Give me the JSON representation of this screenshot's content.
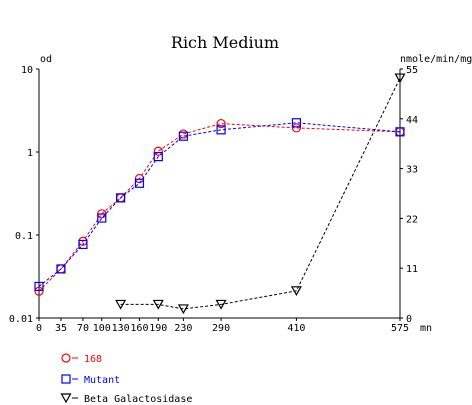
{
  "chart_data": {
    "type": "line",
    "title": "Rich Medium",
    "xlabel": "mn",
    "ylabel_left": "od",
    "ylabel_right": "nmole/min/mg",
    "x_ticks": [
      "0",
      "35",
      "70",
      "100",
      "130",
      "160",
      "190",
      "230",
      "290",
      "410",
      "575"
    ],
    "y_left_ticks": [
      "10",
      "1",
      "0.1",
      "0.01"
    ],
    "y_left_scale": "log",
    "y_left_range": [
      0.01,
      10
    ],
    "y_right_ticks": [
      "55",
      "44",
      "33",
      "22",
      "11",
      "0"
    ],
    "y_right_range": [
      0,
      55
    ],
    "x_range": [
      0,
      575
    ],
    "grid": false,
    "legend_position": "bottom-left",
    "series": [
      {
        "name": "168",
        "axis": "left",
        "color": "#ff0000",
        "marker": "circle",
        "x": [
          0,
          35,
          70,
          100,
          130,
          160,
          190,
          230,
          290,
          410,
          575
        ],
        "y": [
          0.021,
          0.039,
          0.084,
          0.18,
          0.28,
          0.48,
          1.02,
          1.65,
          2.2,
          1.95,
          1.75
        ]
      },
      {
        "name": "Mutant",
        "axis": "left",
        "color": "#0000ff",
        "marker": "square",
        "x": [
          0,
          35,
          70,
          100,
          130,
          160,
          190,
          230,
          290,
          410,
          575
        ],
        "y": [
          0.024,
          0.039,
          0.077,
          0.16,
          0.28,
          0.42,
          0.88,
          1.55,
          1.85,
          2.25,
          1.75
        ]
      },
      {
        "name": "Beta Galactosidase",
        "axis": "right",
        "color": "#000000",
        "marker": "triangle-down",
        "x": [
          130,
          190,
          230,
          290,
          410,
          575
        ],
        "y": [
          3,
          3,
          2,
          3,
          6,
          53
        ]
      }
    ]
  }
}
